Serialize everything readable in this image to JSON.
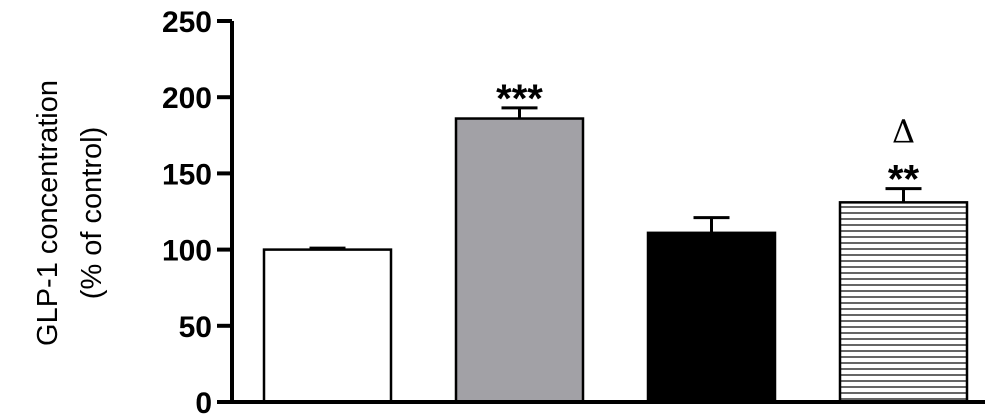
{
  "chart_data": {
    "type": "bar",
    "title": "",
    "xlabel": "",
    "ylabel_lines": [
      "GLP-1 concentration",
      "(% of control)"
    ],
    "ylim": [
      0,
      250
    ],
    "yticks": [
      0,
      50,
      100,
      150,
      200,
      250
    ],
    "grid": false,
    "legend": "none",
    "bars": [
      {
        "value": 100,
        "error": 1,
        "fill": "#ffffff",
        "pattern": "none",
        "annotations": []
      },
      {
        "value": 186,
        "error": 7,
        "fill": "#a2a1a6",
        "pattern": "none",
        "annotations": [
          "***"
        ]
      },
      {
        "value": 111,
        "error": 10,
        "fill": "#000000",
        "pattern": "none",
        "annotations": []
      },
      {
        "value": 131,
        "error": 9,
        "fill": "#ffffff",
        "pattern": "horizontal",
        "annotations": [
          "**",
          "Δ"
        ]
      }
    ]
  }
}
